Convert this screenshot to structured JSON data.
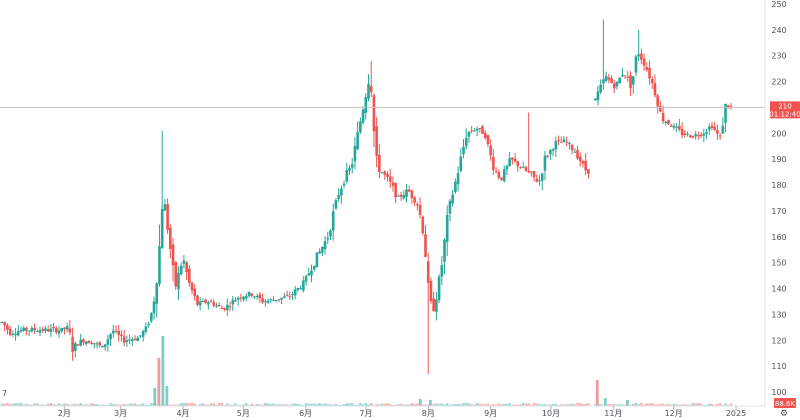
{
  "chart_data": {
    "type": "candlestick",
    "y_ticks": [
      100,
      110,
      120,
      130,
      140,
      150,
      160,
      170,
      180,
      190,
      200,
      210,
      220,
      230,
      240,
      250
    ],
    "ylim": [
      93,
      251
    ],
    "x_ticks": [
      {
        "label": "2月",
        "day": 31
      },
      {
        "label": "3月",
        "day": 59
      },
      {
        "label": "4月",
        "day": 90
      },
      {
        "label": "5月",
        "day": 120
      },
      {
        "label": "6月",
        "day": 151
      },
      {
        "label": "7月",
        "day": 181
      },
      {
        "label": "8月",
        "day": 212
      },
      {
        "label": "9月",
        "day": 243
      },
      {
        "label": "10月",
        "day": 273
      },
      {
        "label": "11月",
        "day": 304
      },
      {
        "label": "12月",
        "day": 334
      },
      {
        "label": "2025",
        "day": 365
      }
    ],
    "xlim": [
      0,
      368
    ],
    "last_price": "210",
    "last_price_value": 210,
    "countdown": "01:12:40",
    "volume_label": "88.6K",
    "up_color": "#26a69a",
    "down_color": "#ef5350",
    "grid": false,
    "waypoints": [
      [
        0,
        127
      ],
      [
        4,
        123
      ],
      [
        10,
        124
      ],
      [
        20,
        124
      ],
      [
        30,
        124
      ],
      [
        33,
        125
      ],
      [
        35,
        117
      ],
      [
        40,
        120
      ],
      [
        46,
        119
      ],
      [
        50,
        117
      ],
      [
        55,
        124
      ],
      [
        60,
        120
      ],
      [
        68,
        121
      ],
      [
        72,
        125
      ],
      [
        75,
        132
      ],
      [
        78,
        152
      ],
      [
        80,
        178
      ],
      [
        83,
        160
      ],
      [
        86,
        140
      ],
      [
        90,
        152
      ],
      [
        93,
        142
      ],
      [
        97,
        134
      ],
      [
        103,
        135
      ],
      [
        110,
        132
      ],
      [
        118,
        137
      ],
      [
        124,
        138
      ],
      [
        130,
        135
      ],
      [
        137,
        136
      ],
      [
        143,
        137
      ],
      [
        150,
        142
      ],
      [
        155,
        150
      ],
      [
        162,
        160
      ],
      [
        167,
        176
      ],
      [
        170,
        182
      ],
      [
        174,
        188
      ],
      [
        180,
        212
      ],
      [
        183,
        224
      ],
      [
        186,
        188
      ],
      [
        192,
        182
      ],
      [
        197,
        175
      ],
      [
        202,
        178
      ],
      [
        207,
        172
      ],
      [
        210,
        160
      ],
      [
        212,
        138
      ],
      [
        214,
        130
      ],
      [
        218,
        145
      ],
      [
        222,
        170
      ],
      [
        227,
        186
      ],
      [
        231,
        200
      ],
      [
        236,
        202
      ],
      [
        240,
        200
      ],
      [
        244,
        188
      ],
      [
        248,
        182
      ],
      [
        253,
        190
      ],
      [
        258,
        187
      ],
      [
        263,
        184
      ],
      [
        267,
        181
      ],
      [
        270,
        190
      ],
      [
        275,
        196
      ],
      [
        280,
        197
      ],
      [
        285,
        193
      ],
      [
        290,
        186
      ],
      [
        292,
        185
      ]
    ],
    "waypoints_b": [
      [
        295,
        213
      ],
      [
        300,
        222
      ],
      [
        305,
        218
      ],
      [
        309,
        224
      ],
      [
        313,
        218
      ],
      [
        316,
        232
      ],
      [
        320,
        226
      ],
      [
        324,
        218
      ],
      [
        328,
        206
      ],
      [
        333,
        203
      ],
      [
        338,
        200
      ],
      [
        343,
        199
      ],
      [
        348,
        200
      ],
      [
        353,
        203
      ],
      [
        357,
        198
      ],
      [
        360,
        211
      ],
      [
        363,
        210
      ]
    ],
    "volume": [
      {
        "day": 76,
        "value": 18
      },
      {
        "day": 78,
        "value": 48
      },
      {
        "day": 80,
        "value": 70
      },
      {
        "day": 82,
        "value": 20
      },
      {
        "day": 208,
        "value": 7
      },
      {
        "day": 213,
        "value": 6
      },
      {
        "day": 296,
        "value": 26
      },
      {
        "day": 300,
        "value": 8
      },
      {
        "day": 311,
        "value": 6
      }
    ]
  }
}
